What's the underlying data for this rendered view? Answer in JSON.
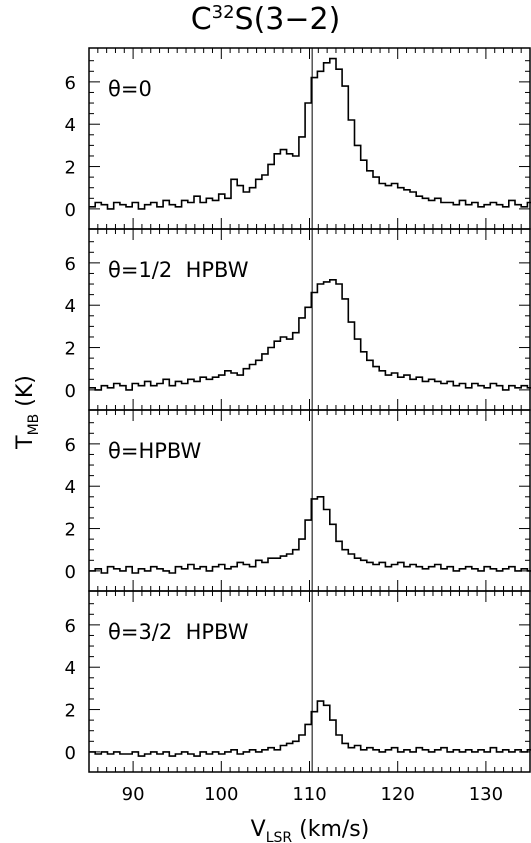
{
  "title": {
    "main": "C",
    "sup": "32",
    "rest": "S(3−2)"
  },
  "y_axis_label": {
    "main": "T",
    "sub": "MB",
    "rest": " (K)"
  },
  "x_axis_label": {
    "main": "V",
    "sub": "LSR",
    "rest": " (km/s)"
  },
  "chart_data": [
    {
      "type": "line",
      "annotation": "θ=0",
      "xlim": [
        85,
        135
      ],
      "ylim": [
        -0.95,
        7.6
      ],
      "x_ticks": [
        90,
        100,
        110,
        120,
        130
      ],
      "y_ticks": [
        0,
        2,
        4,
        6
      ],
      "y_tick_labels": [
        "0",
        "2",
        "4",
        "6"
      ],
      "x_tick_labels": [],
      "reference_line_x": 110.3,
      "line_style": "histogram",
      "x": [
        85.0,
        85.7,
        86.4,
        87.1,
        87.8,
        88.5,
        89.2,
        89.9,
        90.6,
        91.3,
        92.0,
        92.7,
        93.4,
        94.1,
        94.8,
        95.5,
        96.2,
        96.9,
        97.6,
        98.3,
        99.0,
        99.7,
        100.4,
        101.1,
        101.8,
        102.5,
        103.2,
        103.9,
        104.6,
        105.3,
        106.0,
        106.7,
        107.4,
        108.1,
        108.8,
        109.5,
        110.2,
        110.9,
        111.6,
        112.3,
        113.0,
        113.7,
        114.4,
        115.1,
        115.8,
        116.5,
        117.2,
        117.9,
        118.6,
        119.3,
        120.0,
        120.7,
        121.4,
        122.1,
        122.8,
        123.5,
        124.2,
        124.9,
        125.6,
        126.3,
        127.0,
        127.7,
        128.4,
        129.1,
        129.8,
        130.5,
        131.2,
        131.9,
        132.6,
        133.3,
        134.0,
        134.7
      ],
      "y": [
        0.1,
        0.3,
        0.2,
        0.0,
        0.3,
        0.2,
        0.1,
        0.3,
        0.0,
        0.2,
        0.3,
        0.1,
        0.4,
        0.2,
        0.1,
        0.4,
        0.3,
        0.6,
        0.3,
        0.5,
        0.4,
        0.7,
        0.5,
        1.4,
        1.1,
        0.8,
        1.0,
        1.4,
        1.6,
        2.1,
        2.6,
        2.8,
        2.6,
        2.5,
        3.4,
        5.0,
        6.2,
        6.5,
        6.9,
        7.1,
        6.6,
        5.8,
        4.2,
        3.0,
        2.3,
        1.8,
        1.5,
        1.2,
        1.1,
        1.2,
        1.0,
        0.9,
        0.8,
        0.6,
        0.5,
        0.4,
        0.5,
        0.3,
        0.3,
        0.2,
        0.4,
        0.2,
        0.3,
        0.1,
        0.2,
        0.3,
        0.2,
        0.1,
        0.4,
        0.2,
        0.1,
        0.3
      ]
    },
    {
      "type": "line",
      "annotation": "θ=1/2  HPBW",
      "xlim": [
        85,
        135
      ],
      "ylim": [
        -0.95,
        7.6
      ],
      "x_ticks": [
        90,
        100,
        110,
        120,
        130
      ],
      "y_ticks": [
        0,
        2,
        4,
        6
      ],
      "y_tick_labels": [
        "0",
        "2",
        "4",
        "6"
      ],
      "x_tick_labels": [],
      "reference_line_x": 110.3,
      "line_style": "histogram",
      "x": [
        85.0,
        85.7,
        86.4,
        87.1,
        87.8,
        88.5,
        89.2,
        89.9,
        90.6,
        91.3,
        92.0,
        92.7,
        93.4,
        94.1,
        94.8,
        95.5,
        96.2,
        96.9,
        97.6,
        98.3,
        99.0,
        99.7,
        100.4,
        101.1,
        101.8,
        102.5,
        103.2,
        103.9,
        104.6,
        105.3,
        106.0,
        106.7,
        107.4,
        108.1,
        108.8,
        109.5,
        110.2,
        110.9,
        111.6,
        112.3,
        113.0,
        113.7,
        114.4,
        115.1,
        115.8,
        116.5,
        117.2,
        117.9,
        118.6,
        119.3,
        120.0,
        120.7,
        121.4,
        122.1,
        122.8,
        123.5,
        124.2,
        124.9,
        125.6,
        126.3,
        127.0,
        127.7,
        128.4,
        129.1,
        129.8,
        130.5,
        131.2,
        131.9,
        132.6,
        133.3,
        134.0,
        134.7
      ],
      "y": [
        0.1,
        0.0,
        0.2,
        0.1,
        0.3,
        0.2,
        0.0,
        0.3,
        0.2,
        0.4,
        0.2,
        0.3,
        0.5,
        0.2,
        0.4,
        0.3,
        0.5,
        0.4,
        0.6,
        0.5,
        0.6,
        0.7,
        0.9,
        0.8,
        0.7,
        1.0,
        1.2,
        1.4,
        1.7,
        2.0,
        2.3,
        2.5,
        2.4,
        2.7,
        3.4,
        3.9,
        4.6,
        5.0,
        5.1,
        5.2,
        5.0,
        4.3,
        3.2,
        2.4,
        1.8,
        1.4,
        1.1,
        0.9,
        0.7,
        0.8,
        0.6,
        0.7,
        0.5,
        0.6,
        0.4,
        0.5,
        0.4,
        0.3,
        0.4,
        0.2,
        0.3,
        0.1,
        0.3,
        0.2,
        0.1,
        0.3,
        0.2,
        0.0,
        0.2,
        0.1,
        0.2,
        0.1
      ]
    },
    {
      "type": "line",
      "annotation": "θ=HPBW",
      "xlim": [
        85,
        135
      ],
      "ylim": [
        -0.95,
        7.6
      ],
      "x_ticks": [
        90,
        100,
        110,
        120,
        130
      ],
      "y_ticks": [
        0,
        2,
        4,
        6
      ],
      "y_tick_labels": [
        "0",
        "2",
        "4",
        "6"
      ],
      "x_tick_labels": [],
      "reference_line_x": 110.3,
      "line_style": "histogram",
      "x": [
        85.0,
        85.7,
        86.4,
        87.1,
        87.8,
        88.5,
        89.2,
        89.9,
        90.6,
        91.3,
        92.0,
        92.7,
        93.4,
        94.1,
        94.8,
        95.5,
        96.2,
        96.9,
        97.6,
        98.3,
        99.0,
        99.7,
        100.4,
        101.1,
        101.8,
        102.5,
        103.2,
        103.9,
        104.6,
        105.3,
        106.0,
        106.7,
        107.4,
        108.1,
        108.8,
        109.5,
        110.2,
        110.9,
        111.6,
        112.3,
        113.0,
        113.7,
        114.4,
        115.1,
        115.8,
        116.5,
        117.2,
        117.9,
        118.6,
        119.3,
        120.0,
        120.7,
        121.4,
        122.1,
        122.8,
        123.5,
        124.2,
        124.9,
        125.6,
        126.3,
        127.0,
        127.7,
        128.4,
        129.1,
        129.8,
        130.5,
        131.2,
        131.9,
        132.6,
        133.3,
        134.0,
        134.7
      ],
      "y": [
        0.0,
        0.1,
        -0.1,
        0.2,
        0.1,
        0.0,
        0.2,
        -0.1,
        0.1,
        0.0,
        0.2,
        0.1,
        0.0,
        -0.1,
        0.2,
        0.1,
        0.3,
        0.1,
        0.2,
        0.0,
        0.2,
        0.3,
        0.1,
        0.2,
        0.4,
        0.3,
        0.2,
        0.5,
        0.4,
        0.6,
        0.6,
        0.7,
        0.8,
        1.0,
        1.5,
        2.4,
        3.4,
        3.5,
        2.9,
        2.2,
        1.4,
        1.0,
        0.8,
        0.6,
        0.5,
        0.4,
        0.3,
        0.4,
        0.2,
        0.3,
        0.4,
        0.2,
        0.3,
        0.2,
        0.1,
        0.2,
        0.3,
        0.1,
        0.2,
        0.0,
        0.1,
        0.2,
        0.1,
        0.0,
        0.2,
        0.1,
        0.0,
        0.1,
        0.2,
        0.0,
        0.1,
        0.0
      ]
    },
    {
      "type": "line",
      "annotation": "θ=3/2  HPBW",
      "xlim": [
        85,
        135
      ],
      "ylim": [
        -0.95,
        7.6
      ],
      "x_ticks": [
        90,
        100,
        110,
        120,
        130
      ],
      "y_ticks": [
        0,
        2,
        4,
        6
      ],
      "y_tick_labels": [
        "0",
        "2",
        "4",
        "6"
      ],
      "x_tick_labels": [
        "90",
        "100",
        "110",
        "120",
        "130"
      ],
      "reference_line_x": 110.3,
      "line_style": "histogram",
      "x": [
        85.0,
        85.7,
        86.4,
        87.1,
        87.8,
        88.5,
        89.2,
        89.9,
        90.6,
        91.3,
        92.0,
        92.7,
        93.4,
        94.1,
        94.8,
        95.5,
        96.2,
        96.9,
        97.6,
        98.3,
        99.0,
        99.7,
        100.4,
        101.1,
        101.8,
        102.5,
        103.2,
        103.9,
        104.6,
        105.3,
        106.0,
        106.7,
        107.4,
        108.1,
        108.8,
        109.5,
        110.2,
        110.9,
        111.6,
        112.3,
        113.0,
        113.7,
        114.4,
        115.1,
        115.8,
        116.5,
        117.2,
        117.9,
        118.6,
        119.3,
        120.0,
        120.7,
        121.4,
        122.1,
        122.8,
        123.5,
        124.2,
        124.9,
        125.6,
        126.3,
        127.0,
        127.7,
        128.4,
        129.1,
        129.8,
        130.5,
        131.2,
        131.9,
        132.6,
        133.3,
        134.0,
        134.7
      ],
      "y": [
        0.0,
        -0.1,
        0.0,
        -0.1,
        0.0,
        -0.1,
        -0.1,
        0.0,
        -0.2,
        -0.1,
        0.0,
        -0.1,
        0.0,
        -0.2,
        -0.1,
        0.0,
        -0.1,
        -0.2,
        0.0,
        -0.1,
        0.0,
        -0.1,
        0.0,
        0.1,
        -0.1,
        0.0,
        0.1,
        0.0,
        0.1,
        0.2,
        0.1,
        0.3,
        0.4,
        0.5,
        0.8,
        1.3,
        1.9,
        2.4,
        2.2,
        1.5,
        0.8,
        0.4,
        0.2,
        0.3,
        0.1,
        0.2,
        0.1,
        0.0,
        0.1,
        0.2,
        0.0,
        0.1,
        0.0,
        0.2,
        0.1,
        0.0,
        0.1,
        0.2,
        0.0,
        0.1,
        0.0,
        0.1,
        0.0,
        0.1,
        0.0,
        0.2,
        0.0,
        0.1,
        0.0,
        0.1,
        0.0,
        0.1
      ]
    }
  ]
}
